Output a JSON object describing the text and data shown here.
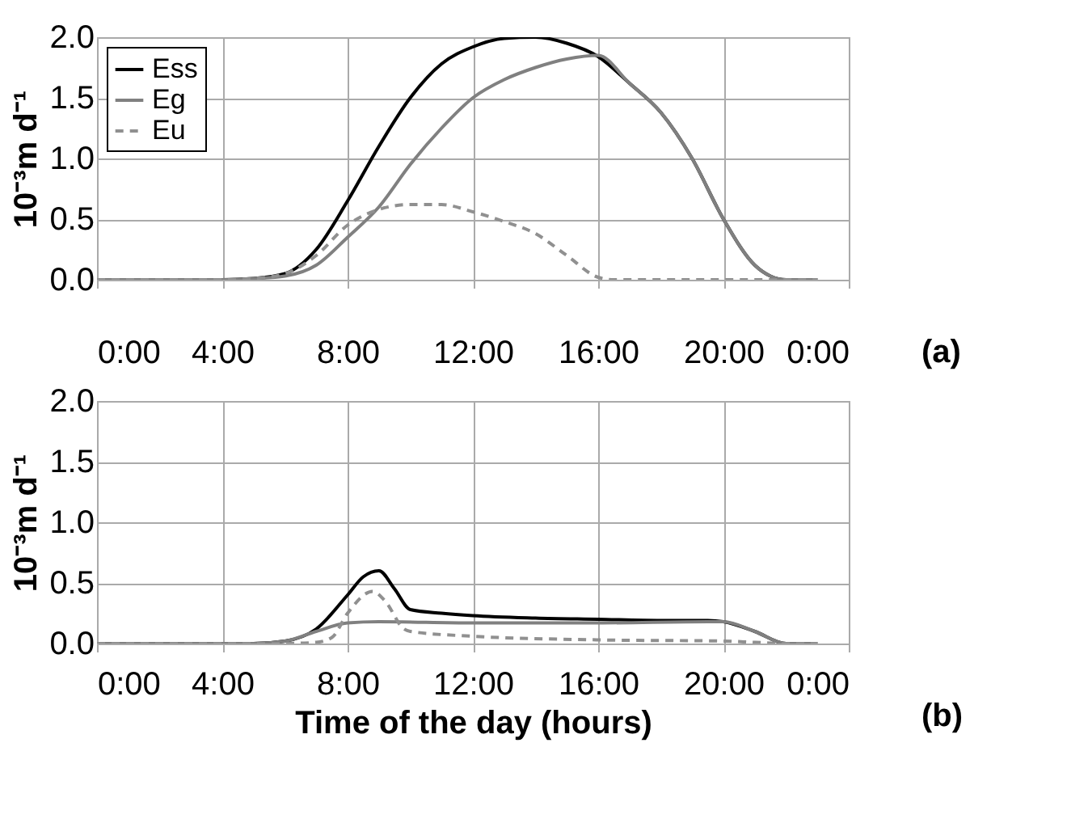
{
  "chart_data": [
    {
      "type": "line",
      "ylabel": "10⁻³m d⁻¹",
      "annotations": [
        "(a)"
      ],
      "xlim": [
        0,
        24
      ],
      "ylim": [
        0,
        2.0
      ],
      "xticks": [
        {
          "value": 0,
          "label": "0:00"
        },
        {
          "value": 4,
          "label": "4:00"
        },
        {
          "value": 8,
          "label": "8:00"
        },
        {
          "value": 12,
          "label": "12:00"
        },
        {
          "value": 16,
          "label": "16:00"
        },
        {
          "value": 20,
          "label": "20:00"
        },
        {
          "value": 24,
          "label": "0:00"
        }
      ],
      "yticks": [
        {
          "value": 0,
          "label": "0.0"
        },
        {
          "value": 0.5,
          "label": "0.5"
        },
        {
          "value": 1,
          "label": "1.0"
        },
        {
          "value": 1.5,
          "label": "1.5"
        },
        {
          "value": 2,
          "label": "2.0"
        }
      ],
      "grid": true,
      "legend": "top left",
      "series": [
        {
          "name": "Ess",
          "color": "#000000",
          "line_style": "solid",
          "x": [
            0,
            4,
            5,
            6,
            7,
            8,
            9,
            10,
            11,
            12,
            13,
            14,
            15,
            16,
            17,
            18,
            19,
            20,
            21,
            21.5,
            22,
            23
          ],
          "values": [
            0,
            0,
            0.01,
            0.05,
            0.25,
            0.65,
            1.1,
            1.5,
            1.78,
            1.92,
            1.99,
            2.0,
            1.95,
            1.84,
            1.62,
            1.38,
            1.0,
            0.5,
            0.12,
            0.03,
            0,
            0
          ]
        },
        {
          "name": "Eg",
          "color": "#808080",
          "line_style": "solid",
          "x": [
            0,
            4,
            5,
            6,
            7,
            8,
            9,
            10,
            11,
            12,
            13,
            14,
            15,
            16,
            17,
            18,
            19,
            20,
            21,
            21.5,
            22,
            23
          ],
          "values": [
            0,
            0,
            0.01,
            0.03,
            0.12,
            0.35,
            0.6,
            0.95,
            1.25,
            1.5,
            1.65,
            1.75,
            1.82,
            1.85,
            1.62,
            1.38,
            1.0,
            0.5,
            0.12,
            0.03,
            0,
            0
          ]
        },
        {
          "name": "Eu",
          "color": "#909090",
          "line_style": "dashed",
          "x": [
            0,
            4,
            5,
            6,
            7,
            8,
            9,
            10,
            11,
            12,
            13,
            14,
            15,
            16,
            16.5,
            20,
            23
          ],
          "values": [
            0,
            0,
            0.01,
            0.05,
            0.2,
            0.45,
            0.58,
            0.62,
            0.62,
            0.56,
            0.48,
            0.38,
            0.2,
            0.02,
            0,
            0,
            0
          ]
        }
      ]
    },
    {
      "type": "line",
      "xlabel": "Time of the day (hours)",
      "ylabel": "10⁻³m d⁻¹",
      "annotations": [
        "(b)"
      ],
      "xlim": [
        0,
        24
      ],
      "ylim": [
        0,
        2.0
      ],
      "xticks": [
        {
          "value": 0,
          "label": "0:00"
        },
        {
          "value": 4,
          "label": "4:00"
        },
        {
          "value": 8,
          "label": "8:00"
        },
        {
          "value": 12,
          "label": "12:00"
        },
        {
          "value": 16,
          "label": "16:00"
        },
        {
          "value": 20,
          "label": "20:00"
        },
        {
          "value": 24,
          "label": "0:00"
        }
      ],
      "yticks": [
        {
          "value": 0,
          "label": "0.0"
        },
        {
          "value": 0.5,
          "label": "0.5"
        },
        {
          "value": 1,
          "label": "1.0"
        },
        {
          "value": 1.5,
          "label": "1.5"
        },
        {
          "value": 2,
          "label": "2.0"
        }
      ],
      "grid": true,
      "series": [
        {
          "color": "#000000",
          "line_style": "solid",
          "x": [
            0,
            5,
            6,
            7,
            8,
            8.5,
            9,
            9.5,
            10,
            11,
            12,
            14,
            16,
            18,
            19.5,
            20,
            21,
            22,
            23
          ],
          "values": [
            0,
            0,
            0.02,
            0.12,
            0.4,
            0.55,
            0.6,
            0.45,
            0.28,
            0.25,
            0.23,
            0.21,
            0.2,
            0.19,
            0.19,
            0.18,
            0.1,
            0,
            0
          ]
        },
        {
          "color": "#808080",
          "line_style": "solid",
          "x": [
            0,
            5,
            6,
            7,
            8,
            9,
            12,
            16,
            19.5,
            20,
            21,
            22,
            23
          ],
          "values": [
            0,
            0,
            0.02,
            0.1,
            0.17,
            0.18,
            0.17,
            0.17,
            0.18,
            0.18,
            0.1,
            0,
            0
          ]
        },
        {
          "color": "#909090",
          "line_style": "dashed",
          "x": [
            0,
            6,
            7,
            7.5,
            8,
            8.8,
            9.2,
            9.8,
            10,
            12,
            16,
            20,
            21,
            22,
            23
          ],
          "values": [
            0,
            0,
            0.01,
            0.05,
            0.25,
            0.43,
            0.35,
            0.12,
            0.1,
            0.06,
            0.03,
            0.02,
            0.01,
            0,
            0
          ]
        }
      ]
    }
  ]
}
